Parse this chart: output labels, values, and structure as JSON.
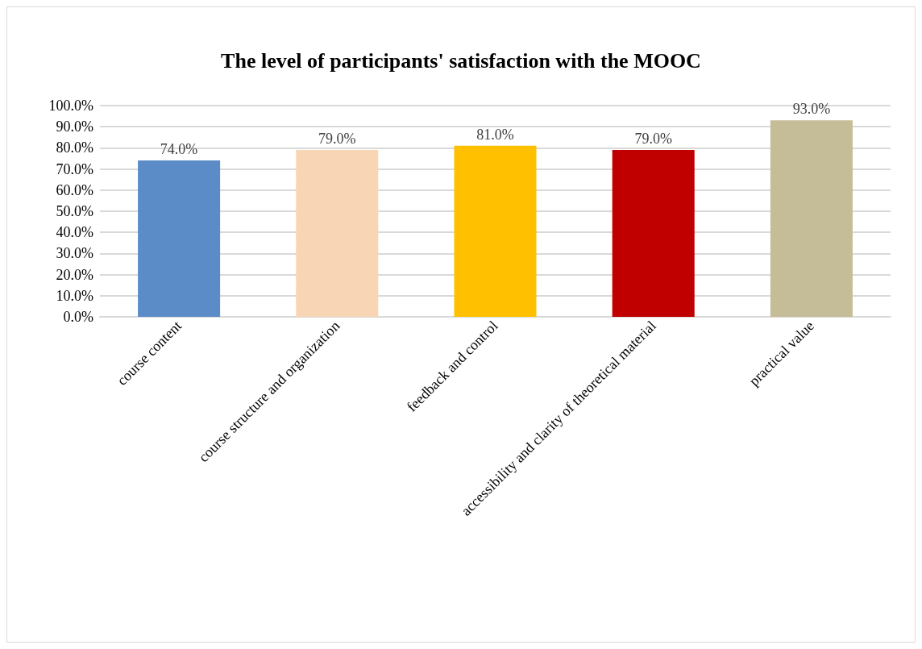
{
  "chart_data": {
    "type": "bar",
    "title": "The level of participants' satisfaction with the MOOC",
    "categories": [
      "course content",
      "course structure and organization",
      "feedback and control",
      "accessibility and clarity of theoretical material",
      "practical value"
    ],
    "values": [
      74,
      79,
      81,
      79,
      93
    ],
    "colors": [
      "#5b8cc8",
      "#f8d5b4",
      "#ffc000",
      "#c00000",
      "#c4bd97"
    ],
    "value_labels": [
      "74.0%",
      "79.0%",
      "81.0%",
      "79.0%",
      "93.0%"
    ],
    "ylim": [
      0,
      100
    ],
    "yticks": [
      {
        "value": 0,
        "label": "0.0%"
      },
      {
        "value": 10,
        "label": "10.0%"
      },
      {
        "value": 20,
        "label": "20.0%"
      },
      {
        "value": 30,
        "label": "30.0%"
      },
      {
        "value": 40,
        "label": "40.0%"
      },
      {
        "value": 50,
        "label": "50.0%"
      },
      {
        "value": 60,
        "label": "60.0%"
      },
      {
        "value": 70,
        "label": "70.0%"
      },
      {
        "value": 80,
        "label": "80.0%"
      },
      {
        "value": 90,
        "label": "90.0%"
      },
      {
        "value": 100,
        "label": "100.0%"
      }
    ],
    "grid": "y"
  }
}
